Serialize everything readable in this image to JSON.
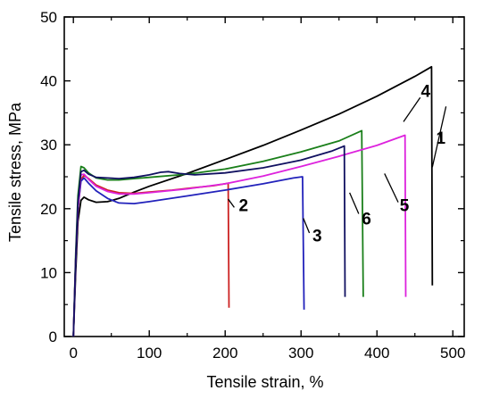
{
  "chart_data": {
    "type": "line",
    "title": "",
    "xlabel": "Tensile strain, %",
    "ylabel": "Tensile stress, MPa",
    "xlim": [
      -12,
      515
    ],
    "ylim": [
      0,
      50
    ],
    "x_ticks": [
      0,
      100,
      200,
      300,
      400,
      500
    ],
    "y_ticks": [
      0,
      10,
      20,
      30,
      40,
      50
    ],
    "grid": false,
    "legend": "none",
    "series": [
      {
        "name": "1",
        "color": "#000000",
        "points": [
          [
            0,
            0
          ],
          [
            3,
            10
          ],
          [
            6,
            18
          ],
          [
            10,
            21.3
          ],
          [
            14,
            21.8
          ],
          [
            20,
            21.4
          ],
          [
            30,
            21.0
          ],
          [
            45,
            21.1
          ],
          [
            60,
            21.6
          ],
          [
            80,
            22.6
          ],
          [
            100,
            23.5
          ],
          [
            150,
            25.5
          ],
          [
            200,
            27.7
          ],
          [
            250,
            29.9
          ],
          [
            300,
            32.3
          ],
          [
            350,
            34.8
          ],
          [
            400,
            37.6
          ],
          [
            450,
            40.7
          ],
          [
            472,
            42.2
          ],
          [
            473,
            8
          ]
        ]
      },
      {
        "name": "2",
        "color": "#cc2222",
        "points": [
          [
            0,
            0
          ],
          [
            3,
            12
          ],
          [
            6,
            20
          ],
          [
            10,
            24.6
          ],
          [
            14,
            25.2
          ],
          [
            20,
            24.7
          ],
          [
            30,
            23.7
          ],
          [
            45,
            22.9
          ],
          [
            60,
            22.5
          ],
          [
            80,
            22.4
          ],
          [
            100,
            22.6
          ],
          [
            130,
            22.9
          ],
          [
            160,
            23.3
          ],
          [
            185,
            23.6
          ],
          [
            200,
            23.9
          ],
          [
            204,
            24.0
          ],
          [
            205,
            4.5
          ]
        ]
      },
      {
        "name": "3",
        "color": "#2222bb",
        "points": [
          [
            0,
            0
          ],
          [
            3,
            12
          ],
          [
            6,
            20
          ],
          [
            10,
            24.3
          ],
          [
            14,
            24.8
          ],
          [
            20,
            24.0
          ],
          [
            30,
            22.8
          ],
          [
            45,
            21.6
          ],
          [
            60,
            20.9
          ],
          [
            80,
            20.8
          ],
          [
            100,
            21.1
          ],
          [
            150,
            22.0
          ],
          [
            200,
            22.9
          ],
          [
            250,
            23.9
          ],
          [
            290,
            24.8
          ],
          [
            302,
            25.0
          ],
          [
            304,
            4.2
          ]
        ]
      },
      {
        "name": "4",
        "color": "#1a7f1a",
        "points": [
          [
            0,
            0
          ],
          [
            3,
            13
          ],
          [
            6,
            22
          ],
          [
            10,
            26.6
          ],
          [
            14,
            26.4
          ],
          [
            20,
            25.6
          ],
          [
            30,
            24.8
          ],
          [
            45,
            24.5
          ],
          [
            60,
            24.5
          ],
          [
            80,
            24.7
          ],
          [
            100,
            24.9
          ],
          [
            150,
            25.4
          ],
          [
            200,
            26.2
          ],
          [
            250,
            27.4
          ],
          [
            300,
            28.9
          ],
          [
            350,
            30.6
          ],
          [
            380,
            32.2
          ],
          [
            382,
            6.2
          ]
        ]
      },
      {
        "name": "5",
        "color": "#dd22dd",
        "points": [
          [
            0,
            0
          ],
          [
            3,
            12
          ],
          [
            6,
            20
          ],
          [
            10,
            25.3
          ],
          [
            14,
            25.4
          ],
          [
            20,
            24.6
          ],
          [
            30,
            23.5
          ],
          [
            45,
            22.7
          ],
          [
            60,
            22.3
          ],
          [
            80,
            22.3
          ],
          [
            100,
            22.5
          ],
          [
            150,
            23.1
          ],
          [
            200,
            23.9
          ],
          [
            250,
            25.1
          ],
          [
            300,
            26.6
          ],
          [
            350,
            28.2
          ],
          [
            400,
            29.9
          ],
          [
            437,
            31.5
          ],
          [
            438,
            6.2
          ]
        ]
      },
      {
        "name": "6",
        "color": "#101060",
        "points": [
          [
            0,
            0
          ],
          [
            3,
            12
          ],
          [
            6,
            21
          ],
          [
            10,
            25.8
          ],
          [
            14,
            26.0
          ],
          [
            20,
            25.4
          ],
          [
            30,
            24.9
          ],
          [
            45,
            24.8
          ],
          [
            60,
            24.7
          ],
          [
            80,
            24.9
          ],
          [
            100,
            25.3
          ],
          [
            115,
            25.7
          ],
          [
            125,
            25.8
          ],
          [
            140,
            25.5
          ],
          [
            160,
            25.3
          ],
          [
            200,
            25.6
          ],
          [
            250,
            26.4
          ],
          [
            300,
            27.6
          ],
          [
            340,
            29.0
          ],
          [
            357,
            29.8
          ],
          [
            358,
            6.2
          ]
        ]
      }
    ],
    "curve_labels": [
      {
        "text": "1",
        "x": 478,
        "y": 30.2,
        "line_from": [
          473,
          26.5
        ],
        "line_to": [
          491,
          36.0
        ]
      },
      {
        "text": "2",
        "x": 218,
        "y": 19.6,
        "line_from": [
          204,
          21.5
        ],
        "line_to": [
          212,
          20.2
        ]
      },
      {
        "text": "3",
        "x": 315,
        "y": 14.9,
        "line_from": [
          303,
          18.5
        ],
        "line_to": [
          311,
          16.2
        ]
      },
      {
        "text": "4",
        "x": 458,
        "y": 37.5,
        "line_from": [
          435,
          33.6
        ],
        "line_to": [
          457,
          37.4
        ]
      },
      {
        "text": "5",
        "x": 430,
        "y": 19.6,
        "line_from": [
          410,
          25.5
        ],
        "line_to": [
          428,
          21.0
        ]
      },
      {
        "text": "6",
        "x": 380,
        "y": 17.5,
        "line_from": [
          364,
          22.5
        ],
        "line_to": [
          376,
          19.2
        ]
      }
    ]
  }
}
